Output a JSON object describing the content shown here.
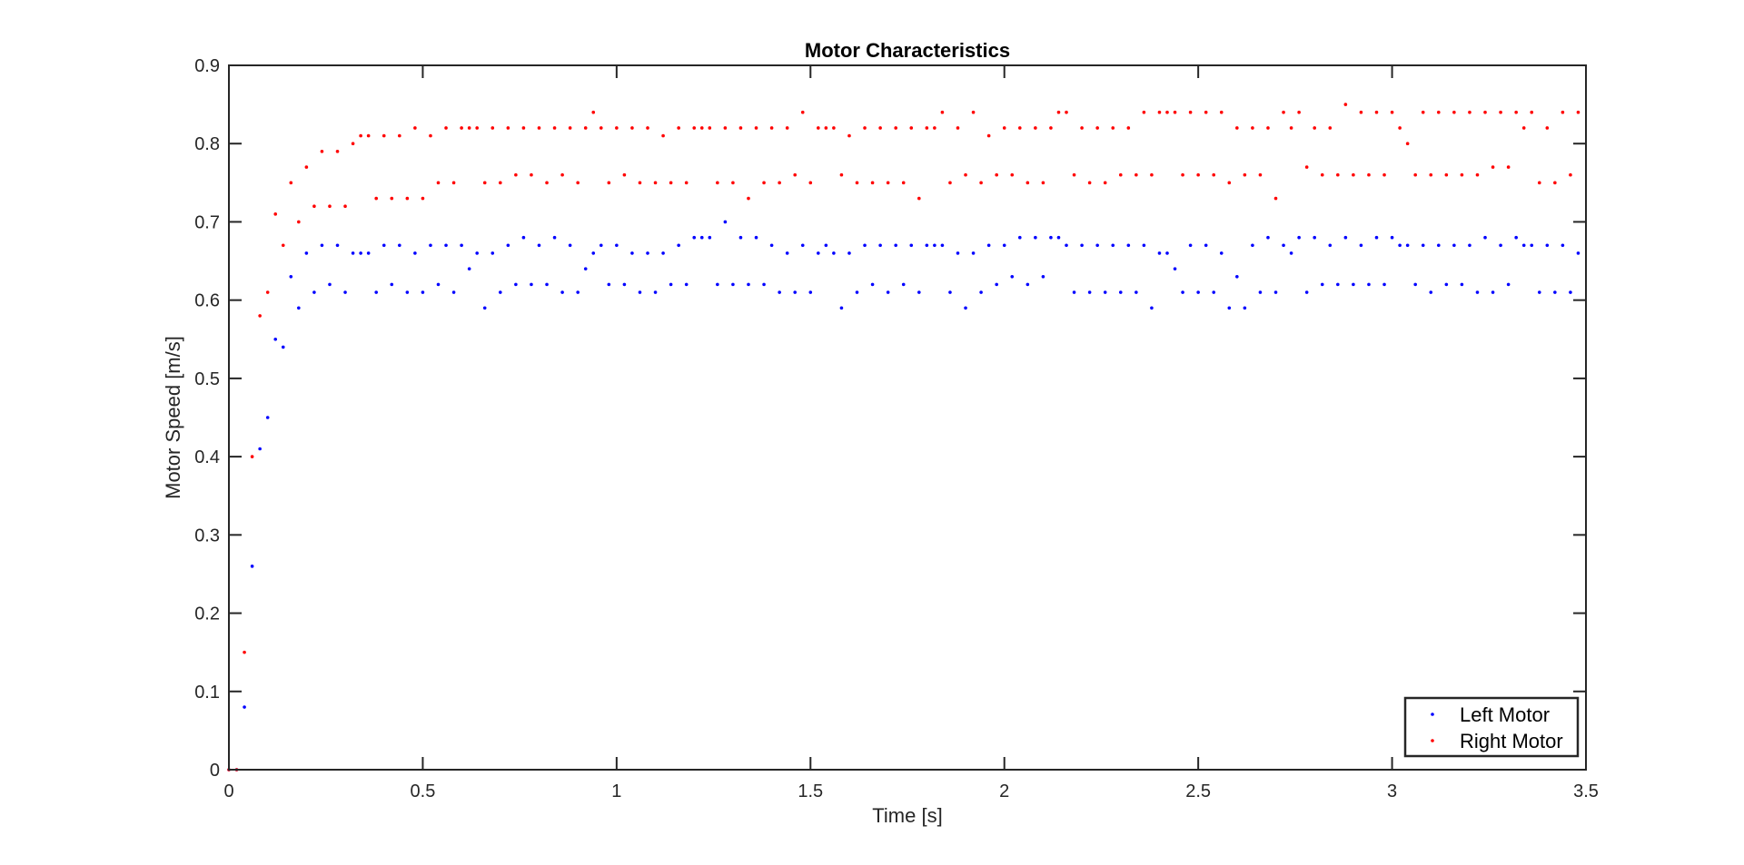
{
  "chart_data": {
    "type": "scatter",
    "title": "Motor Characteristics",
    "xlabel": "Time [s]",
    "ylabel": "Motor Speed [m/s]",
    "xlim": [
      0,
      3.5
    ],
    "ylim": [
      0,
      0.9
    ],
    "x_ticks": [
      0,
      0.5,
      1,
      1.5,
      2,
      2.5,
      3,
      3.5
    ],
    "x_tick_labels": [
      "0",
      "0.5",
      "1",
      "1.5",
      "2",
      "2.5",
      "3",
      "3.5"
    ],
    "y_ticks": [
      0,
      0.1,
      0.2,
      0.3,
      0.4,
      0.5,
      0.6,
      0.7,
      0.8,
      0.9
    ],
    "y_tick_labels": [
      "0",
      "0.1",
      "0.2",
      "0.3",
      "0.4",
      "0.5",
      "0.6",
      "0.7",
      "0.8",
      "0.9"
    ],
    "grid": false,
    "legend_position": "bottom-right",
    "series": [
      {
        "name": "Left Motor",
        "color": "#0000ff",
        "marker": "point",
        "x": [
          0,
          0.02,
          0.04,
          0.06,
          0.08,
          0.1,
          0.12,
          0.14,
          0.16,
          0.18,
          0.2,
          0.22,
          0.24,
          0.26,
          0.28,
          0.3,
          0.32,
          0.34,
          0.36,
          0.38,
          0.4,
          0.42,
          0.44,
          0.46,
          0.48,
          0.5,
          0.52,
          0.54,
          0.56,
          0.58,
          0.6,
          0.62,
          0.64,
          0.66,
          0.68,
          0.7,
          0.72,
          0.74,
          0.76,
          0.78,
          0.8,
          0.82,
          0.84,
          0.86,
          0.88,
          0.9,
          0.92,
          0.94,
          0.96,
          0.98,
          1,
          1.02,
          1.04,
          1.06,
          1.08,
          1.1,
          1.12,
          1.14,
          1.16,
          1.18,
          1.2,
          1.22,
          1.24,
          1.26,
          1.28,
          1.3,
          1.32,
          1.34,
          1.36,
          1.38,
          1.4,
          1.42,
          1.44,
          1.46,
          1.48,
          1.5,
          1.52,
          1.54,
          1.56,
          1.58,
          1.6,
          1.62,
          1.64,
          1.66,
          1.68,
          1.7,
          1.72,
          1.74,
          1.76,
          1.78,
          1.8,
          1.82,
          1.84,
          1.86,
          1.88,
          1.9,
          1.92,
          1.94,
          1.96,
          1.98,
          2,
          2.02,
          2.04,
          2.06,
          2.08,
          2.1,
          2.12,
          2.14,
          2.16,
          2.18,
          2.2,
          2.22,
          2.24,
          2.26,
          2.28,
          2.3,
          2.32,
          2.34,
          2.36,
          2.38,
          2.4,
          2.42,
          2.44,
          2.46,
          2.48,
          2.5,
          2.52,
          2.54,
          2.56,
          2.58,
          2.6,
          2.62,
          2.64,
          2.66,
          2.68,
          2.7,
          2.72,
          2.74,
          2.76,
          2.78,
          2.8,
          2.82,
          2.84,
          2.86,
          2.88,
          2.9,
          2.92,
          2.94,
          2.96,
          2.98,
          3,
          3.02,
          3.04,
          3.06,
          3.08,
          3.1,
          3.12,
          3.14,
          3.16,
          3.18,
          3.2,
          3.22,
          3.24,
          3.26,
          3.28,
          3.3,
          3.32,
          3.34,
          3.36,
          3.38,
          3.4,
          3.42,
          3.44,
          3.46,
          3.48
        ],
        "y": [
          0,
          0,
          0.08,
          0.26,
          0.41,
          0.45,
          0.55,
          0.54,
          0.63,
          0.59,
          0.66,
          0.61,
          0.67,
          0.62,
          0.67,
          0.61,
          0.66,
          0.66,
          0.66,
          0.61,
          0.67,
          0.62,
          0.67,
          0.61,
          0.66,
          0.61,
          0.67,
          0.62,
          0.67,
          0.61,
          0.67,
          0.64,
          0.66,
          0.59,
          0.66,
          0.61,
          0.67,
          0.62,
          0.68,
          0.62,
          0.67,
          0.62,
          0.68,
          0.61,
          0.67,
          0.61,
          0.64,
          0.66,
          0.67,
          0.62,
          0.67,
          0.62,
          0.66,
          0.61,
          0.66,
          0.61,
          0.66,
          0.62,
          0.67,
          0.62,
          0.68,
          0.68,
          0.68,
          0.62,
          0.7,
          0.62,
          0.68,
          0.62,
          0.68,
          0.62,
          0.67,
          0.61,
          0.66,
          0.61,
          0.67,
          0.61,
          0.66,
          0.67,
          0.66,
          0.59,
          0.66,
          0.61,
          0.67,
          0.62,
          0.67,
          0.61,
          0.67,
          0.62,
          0.67,
          0.61,
          0.67,
          0.67,
          0.67,
          0.61,
          0.66,
          0.59,
          0.66,
          0.61,
          0.67,
          0.62,
          0.67,
          0.63,
          0.68,
          0.62,
          0.68,
          0.63,
          0.68,
          0.68,
          0.67,
          0.61,
          0.67,
          0.61,
          0.67,
          0.61,
          0.67,
          0.61,
          0.67,
          0.61,
          0.67,
          0.59,
          0.66,
          0.66,
          0.64,
          0.61,
          0.67,
          0.61,
          0.67,
          0.61,
          0.66,
          0.59,
          0.63,
          0.59,
          0.67,
          0.61,
          0.68,
          0.61,
          0.67,
          0.66,
          0.68,
          0.61,
          0.68,
          0.62,
          0.67,
          0.62,
          0.68,
          0.62,
          0.67,
          0.62,
          0.68,
          0.62,
          0.68,
          0.67,
          0.67,
          0.62,
          0.67,
          0.61,
          0.67,
          0.62,
          0.67,
          0.62,
          0.67,
          0.61,
          0.68,
          0.61,
          0.67,
          0.62,
          0.68,
          0.67,
          0.67,
          0.61,
          0.67,
          0.61,
          0.67,
          0.61,
          0.66
        ]
      },
      {
        "name": "Right Motor",
        "color": "#ff0000",
        "marker": "point",
        "x": [
          0,
          0.02,
          0.04,
          0.06,
          0.08,
          0.1,
          0.12,
          0.14,
          0.16,
          0.18,
          0.2,
          0.22,
          0.24,
          0.26,
          0.28,
          0.3,
          0.32,
          0.34,
          0.36,
          0.38,
          0.4,
          0.42,
          0.44,
          0.46,
          0.48,
          0.5,
          0.52,
          0.54,
          0.56,
          0.58,
          0.6,
          0.62,
          0.64,
          0.66,
          0.68,
          0.7,
          0.72,
          0.74,
          0.76,
          0.78,
          0.8,
          0.82,
          0.84,
          0.86,
          0.88,
          0.9,
          0.92,
          0.94,
          0.96,
          0.98,
          1,
          1.02,
          1.04,
          1.06,
          1.08,
          1.1,
          1.12,
          1.14,
          1.16,
          1.18,
          1.2,
          1.22,
          1.24,
          1.26,
          1.28,
          1.3,
          1.32,
          1.34,
          1.36,
          1.38,
          1.4,
          1.42,
          1.44,
          1.46,
          1.48,
          1.5,
          1.52,
          1.54,
          1.56,
          1.58,
          1.6,
          1.62,
          1.64,
          1.66,
          1.68,
          1.7,
          1.72,
          1.74,
          1.76,
          1.78,
          1.8,
          1.82,
          1.84,
          1.86,
          1.88,
          1.9,
          1.92,
          1.94,
          1.96,
          1.98,
          2,
          2.02,
          2.04,
          2.06,
          2.08,
          2.1,
          2.12,
          2.14,
          2.16,
          2.18,
          2.2,
          2.22,
          2.24,
          2.26,
          2.28,
          2.3,
          2.32,
          2.34,
          2.36,
          2.38,
          2.4,
          2.42,
          2.44,
          2.46,
          2.48,
          2.5,
          2.52,
          2.54,
          2.56,
          2.58,
          2.6,
          2.62,
          2.64,
          2.66,
          2.68,
          2.7,
          2.72,
          2.74,
          2.76,
          2.78,
          2.8,
          2.82,
          2.84,
          2.86,
          2.88,
          2.9,
          2.92,
          2.94,
          2.96,
          2.98,
          3,
          3.02,
          3.04,
          3.06,
          3.08,
          3.1,
          3.12,
          3.14,
          3.16,
          3.18,
          3.2,
          3.22,
          3.24,
          3.26,
          3.28,
          3.3,
          3.32,
          3.34,
          3.36,
          3.38,
          3.4,
          3.42,
          3.44,
          3.46,
          3.48
        ],
        "y": [
          0,
          0,
          0.15,
          0.4,
          0.58,
          0.61,
          0.71,
          0.67,
          0.75,
          0.7,
          0.77,
          0.72,
          0.79,
          0.72,
          0.79,
          0.72,
          0.8,
          0.81,
          0.81,
          0.73,
          0.81,
          0.73,
          0.81,
          0.73,
          0.82,
          0.73,
          0.81,
          0.75,
          0.82,
          0.75,
          0.82,
          0.82,
          0.82,
          0.75,
          0.82,
          0.75,
          0.82,
          0.76,
          0.82,
          0.76,
          0.82,
          0.75,
          0.82,
          0.76,
          0.82,
          0.75,
          0.82,
          0.84,
          0.82,
          0.75,
          0.82,
          0.76,
          0.82,
          0.75,
          0.82,
          0.75,
          0.81,
          0.75,
          0.82,
          0.75,
          0.82,
          0.82,
          0.82,
          0.75,
          0.82,
          0.75,
          0.82,
          0.73,
          0.82,
          0.75,
          0.82,
          0.75,
          0.82,
          0.76,
          0.84,
          0.75,
          0.82,
          0.82,
          0.82,
          0.76,
          0.81,
          0.75,
          0.82,
          0.75,
          0.82,
          0.75,
          0.82,
          0.75,
          0.82,
          0.73,
          0.82,
          0.82,
          0.84,
          0.75,
          0.82,
          0.76,
          0.84,
          0.75,
          0.81,
          0.76,
          0.82,
          0.76,
          0.82,
          0.75,
          0.82,
          0.75,
          0.82,
          0.84,
          0.84,
          0.76,
          0.82,
          0.75,
          0.82,
          0.75,
          0.82,
          0.76,
          0.82,
          0.76,
          0.84,
          0.76,
          0.84,
          0.84,
          0.84,
          0.76,
          0.84,
          0.76,
          0.84,
          0.76,
          0.84,
          0.75,
          0.82,
          0.76,
          0.82,
          0.76,
          0.82,
          0.73,
          0.84,
          0.82,
          0.84,
          0.77,
          0.82,
          0.76,
          0.82,
          0.76,
          0.85,
          0.76,
          0.84,
          0.76,
          0.84,
          0.76,
          0.84,
          0.82,
          0.8,
          0.76,
          0.84,
          0.76,
          0.84,
          0.76,
          0.84,
          0.76,
          0.84,
          0.76,
          0.84,
          0.77,
          0.84,
          0.77,
          0.84,
          0.82,
          0.84,
          0.75,
          0.82,
          0.75,
          0.84,
          0.76,
          0.84
        ]
      }
    ]
  }
}
